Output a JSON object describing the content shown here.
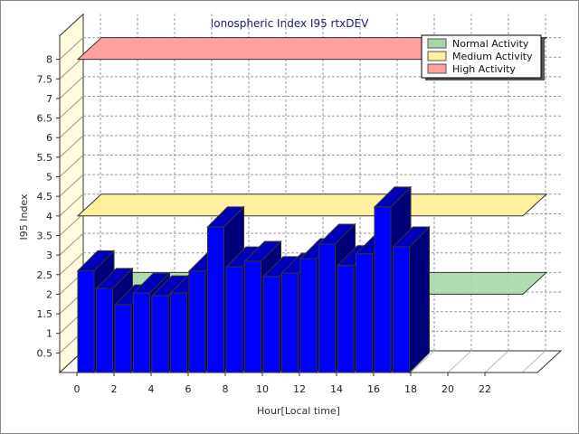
{
  "chart_data": {
    "type": "bar",
    "title": "Ionospheric Index I95 rtxDEV",
    "xlabel": "Hour[Local time]",
    "ylabel": "I95 Index",
    "x": [
      0,
      1,
      2,
      3,
      4,
      5,
      6,
      7,
      8,
      9,
      10,
      11,
      12,
      13,
      14,
      15,
      16,
      17
    ],
    "values": [
      2.6,
      2.15,
      1.73,
      2.03,
      1.96,
      2.03,
      2.59,
      3.72,
      2.7,
      2.84,
      2.45,
      2.54,
      2.91,
      3.28,
      2.73,
      3.03,
      4.23,
      3.21
    ],
    "xlim": [
      0,
      24
    ],
    "ylim": [
      0,
      8
    ],
    "x_ticks": [
      "0",
      "2",
      "4",
      "6",
      "8",
      "10",
      "12",
      "14",
      "16",
      "18",
      "20",
      "22"
    ],
    "y_ticks": [
      "0.5",
      "1",
      "1.5",
      "2",
      "2.5",
      "3",
      "3.5",
      "4",
      "4.5",
      "5",
      "5.5",
      "6",
      "6.5",
      "7",
      "7.5",
      "8"
    ],
    "grid": true,
    "bar_color": "#0000ff",
    "thresholds": [
      {
        "name": "Normal Activity",
        "value": 2,
        "color": "#a8d8a8"
      },
      {
        "name": "Medium Activity",
        "value": 4,
        "color": "#fff0a0"
      },
      {
        "name": "High Activity",
        "value": 8,
        "color": "#ffa0a0"
      }
    ],
    "legend_position": "top-right"
  }
}
